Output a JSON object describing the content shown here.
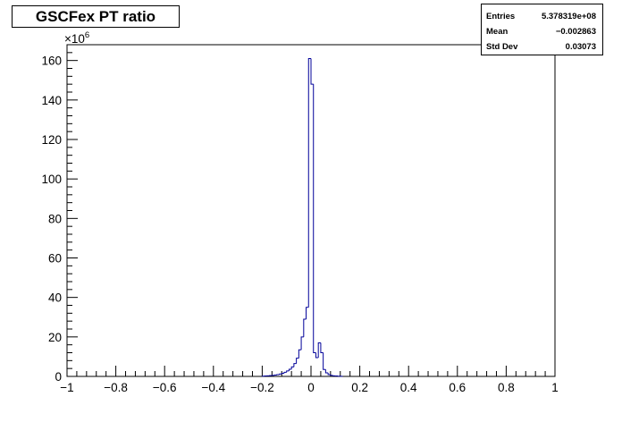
{
  "chart_data": {
    "type": "bar",
    "title": "GSCFex PT ratio",
    "xlabel": "",
    "ylabel": "",
    "xlim": [
      -1,
      1
    ],
    "ylim": [
      0,
      168
    ],
    "y_multiplier_label": "×10",
    "y_multiplier_exponent": "6",
    "grid": false,
    "legend": "none",
    "line_color": "#000099",
    "x_ticks": [
      {
        "value": -1,
        "label": "−1"
      },
      {
        "value": -0.8,
        "label": "−0.8"
      },
      {
        "value": -0.6,
        "label": "−0.6"
      },
      {
        "value": -0.4,
        "label": "−0.4"
      },
      {
        "value": -0.2,
        "label": "−0.2"
      },
      {
        "value": 0,
        "label": "0"
      },
      {
        "value": 0.2,
        "label": "0.2"
      },
      {
        "value": 0.4,
        "label": "0.4"
      },
      {
        "value": 0.6,
        "label": "0.6"
      },
      {
        "value": 0.8,
        "label": "0.8"
      },
      {
        "value": 1,
        "label": "1"
      }
    ],
    "y_ticks": [
      {
        "value": 0,
        "label": "0"
      },
      {
        "value": 20,
        "label": "20"
      },
      {
        "value": 40,
        "label": "40"
      },
      {
        "value": 60,
        "label": "60"
      },
      {
        "value": 80,
        "label": "80"
      },
      {
        "value": 100,
        "label": "100"
      },
      {
        "value": 120,
        "label": "120"
      },
      {
        "value": 140,
        "label": "140"
      },
      {
        "value": 160,
        "label": "160"
      }
    ],
    "bins": {
      "x_low": [
        -0.2,
        -0.19,
        -0.18,
        -0.17,
        -0.16,
        -0.15,
        -0.14,
        -0.13,
        -0.12,
        -0.11,
        -0.1,
        -0.09,
        -0.08,
        -0.07,
        -0.06,
        -0.05,
        -0.04,
        -0.03,
        -0.02,
        -0.01,
        0,
        0.01,
        0.02,
        0.03,
        0.04,
        0.05,
        0.06,
        0.07,
        0.08,
        0.09,
        0.1,
        0.11,
        0.12
      ],
      "x_high": [
        -0.19,
        -0.18,
        -0.17,
        -0.16,
        -0.15,
        -0.14,
        -0.13,
        -0.12,
        -0.11,
        -0.1,
        -0.09,
        -0.08,
        -0.07,
        -0.06,
        -0.05,
        -0.04,
        -0.03,
        -0.02,
        -0.01,
        0,
        0.01,
        0.02,
        0.03,
        0.04,
        0.05,
        0.06,
        0.07,
        0.08,
        0.09,
        0.1,
        0.11,
        0.12,
        0.13
      ],
      "values": [
        0.1,
        0.2,
        0.3,
        0.4,
        0.5,
        0.7,
        0.9,
        1.2,
        1.6,
        2.1,
        2.8,
        3.6,
        4.8,
        6.5,
        9.2,
        13.5,
        20,
        29,
        35,
        161,
        148,
        12,
        9.5,
        17,
        12,
        3.5,
        1.8,
        0.9,
        0.5,
        0.3,
        0.2,
        0.1,
        0.05
      ]
    }
  },
  "stats": {
    "entries_label": "Entries",
    "entries_value": "5.378319e+08",
    "mean_label": "Mean",
    "mean_value": "−0.002863",
    "stddev_label": "Std Dev",
    "stddev_value": "0.03073"
  }
}
